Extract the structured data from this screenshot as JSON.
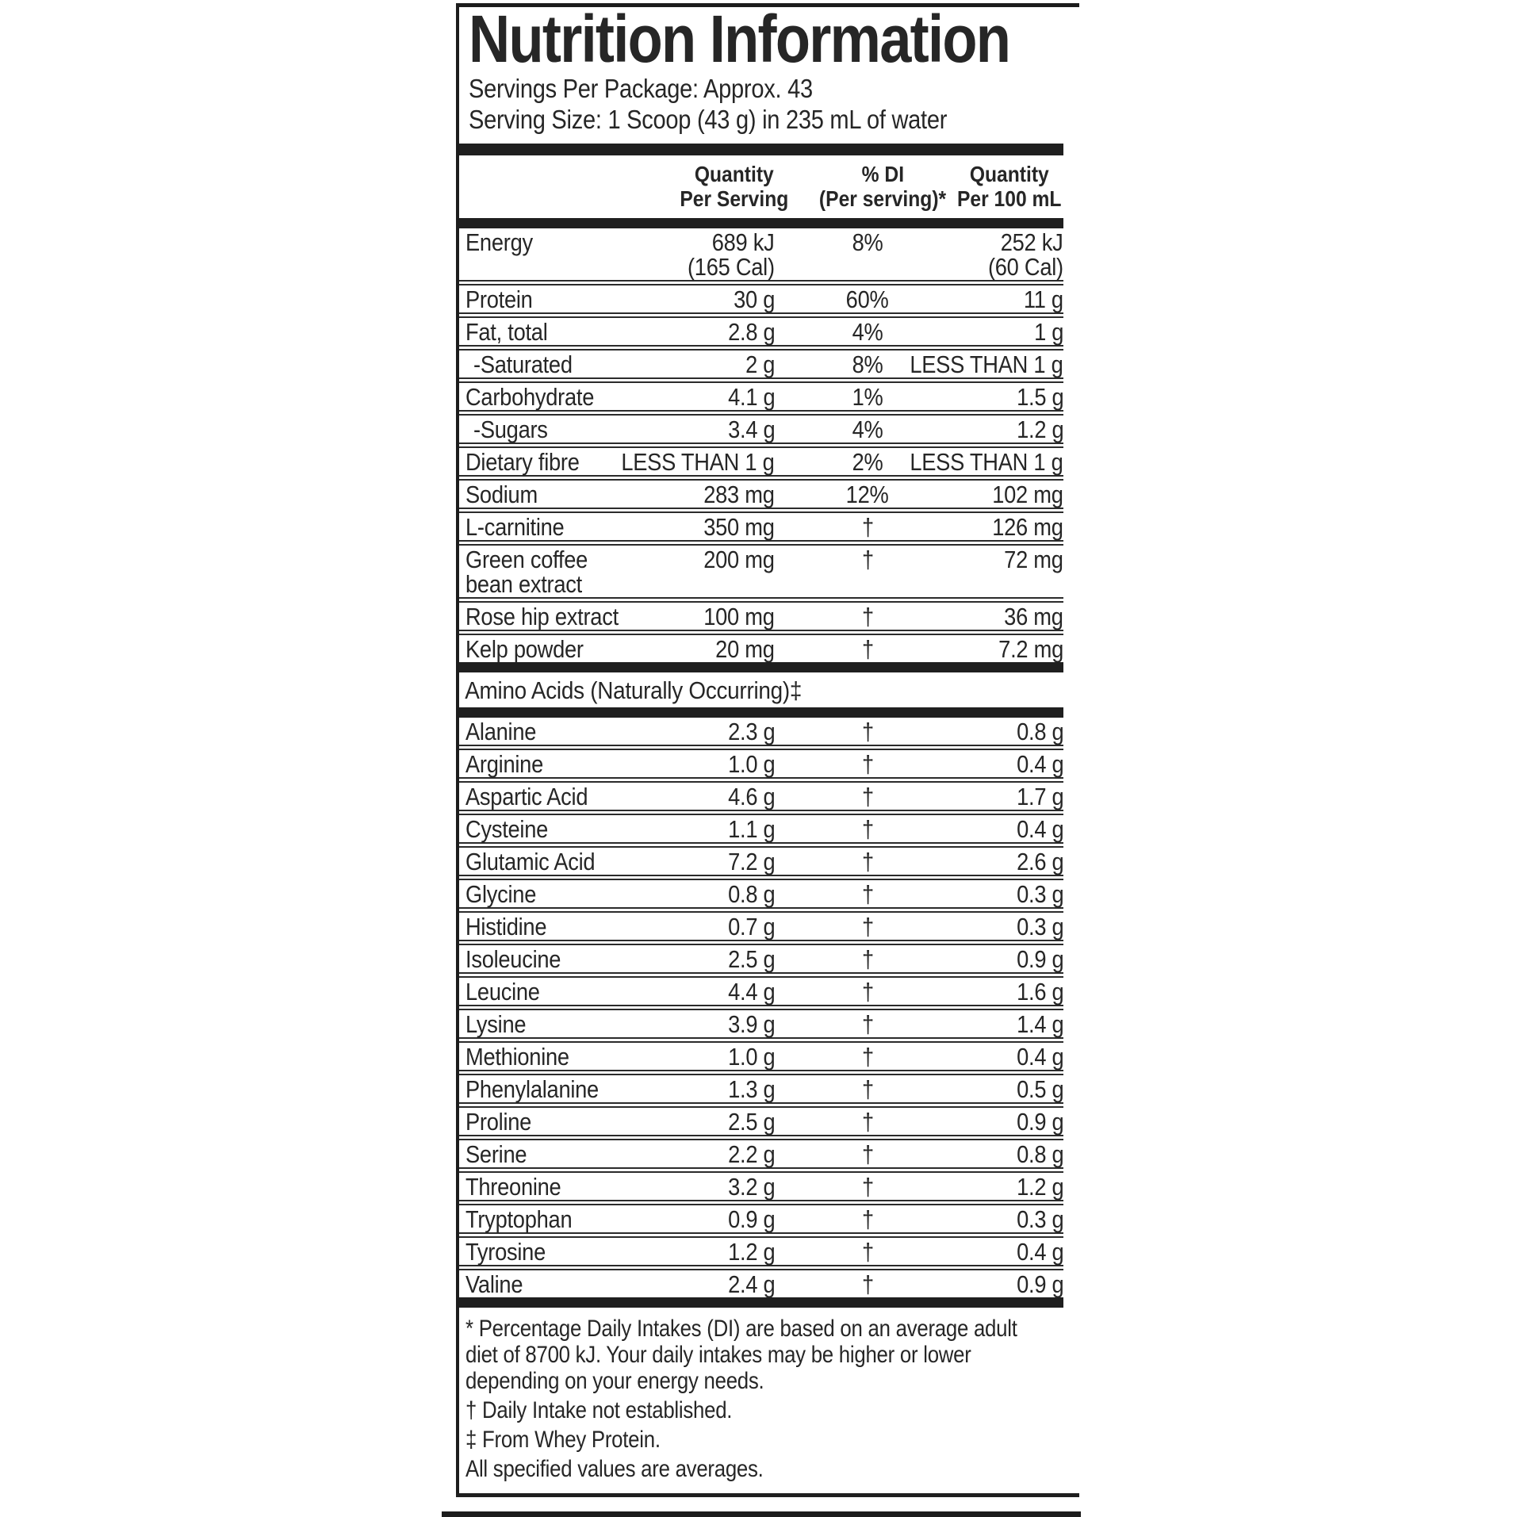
{
  "panel": {
    "title": "Nutrition Information",
    "servings_per_package": "Servings Per Package: Approx. 43",
    "serving_size": "Serving Size: 1 Scoop (43 g) in 235 mL of water",
    "columns": {
      "qty": [
        "Quantity",
        "Per Serving"
      ],
      "di": [
        "% DI",
        "(Per serving)*"
      ],
      "p100": [
        "Quantity",
        "Per 100 mL"
      ]
    },
    "rows": [
      {
        "name": [
          "Energy"
        ],
        "qty": [
          "689 kJ",
          "(165 Cal)"
        ],
        "di": "8%",
        "p100": [
          "252 kJ",
          "(60 Cal)"
        ]
      },
      {
        "name": [
          "Protein"
        ],
        "qty": [
          "30 g"
        ],
        "di": "60%",
        "p100": [
          "11 g"
        ]
      },
      {
        "name": [
          "Fat, total"
        ],
        "qty": [
          "2.8 g"
        ],
        "di": "4%",
        "p100": [
          "1 g"
        ]
      },
      {
        "name": [
          "-Saturated"
        ],
        "indent": true,
        "qty": [
          "2 g"
        ],
        "di": "8%",
        "p100": [
          "LESS THAN 1 g"
        ]
      },
      {
        "name": [
          "Carbohydrate"
        ],
        "qty": [
          "4.1 g"
        ],
        "di": "1%",
        "p100": [
          "1.5 g"
        ]
      },
      {
        "name": [
          "-Sugars"
        ],
        "indent": true,
        "qty": [
          "3.4 g"
        ],
        "di": "4%",
        "p100": [
          "1.2 g"
        ]
      },
      {
        "name": [
          "Dietary fibre"
        ],
        "qty": [
          "LESS THAN 1 g"
        ],
        "di": "2%",
        "p100": [
          "LESS THAN 1 g"
        ]
      },
      {
        "name": [
          "Sodium"
        ],
        "qty": [
          "283 mg"
        ],
        "di": "12%",
        "p100": [
          "102 mg"
        ]
      },
      {
        "name": [
          "L-carnitine"
        ],
        "qty": [
          "350 mg"
        ],
        "di": "†",
        "p100": [
          "126 mg"
        ]
      },
      {
        "name": [
          "Green coffee",
          "bean extract"
        ],
        "qty": [
          "200 mg"
        ],
        "di": "†",
        "p100": [
          "72 mg"
        ]
      },
      {
        "name": [
          "Rose hip extract"
        ],
        "qty": [
          "100 mg"
        ],
        "di": "†",
        "p100": [
          "36 mg"
        ]
      },
      {
        "name": [
          "Kelp powder"
        ],
        "qty": [
          "20 mg"
        ],
        "di": "†",
        "p100": [
          "7.2 mg"
        ]
      }
    ],
    "amino_header": "Amino Acids (Naturally Occurring)‡",
    "amino_rows": [
      {
        "name": [
          "Alanine"
        ],
        "qty": [
          "2.3 g"
        ],
        "di": "†",
        "p100": [
          "0.8 g"
        ]
      },
      {
        "name": [
          "Arginine"
        ],
        "qty": [
          "1.0 g"
        ],
        "di": "†",
        "p100": [
          "0.4 g"
        ]
      },
      {
        "name": [
          "Aspartic Acid"
        ],
        "qty": [
          "4.6 g"
        ],
        "di": "†",
        "p100": [
          "1.7 g"
        ]
      },
      {
        "name": [
          "Cysteine"
        ],
        "qty": [
          "1.1 g"
        ],
        "di": "†",
        "p100": [
          "0.4 g"
        ]
      },
      {
        "name": [
          "Glutamic Acid"
        ],
        "qty": [
          "7.2 g"
        ],
        "di": "†",
        "p100": [
          "2.6 g"
        ]
      },
      {
        "name": [
          "Glycine"
        ],
        "qty": [
          "0.8 g"
        ],
        "di": "†",
        "p100": [
          "0.3 g"
        ]
      },
      {
        "name": [
          "Histidine"
        ],
        "qty": [
          "0.7 g"
        ],
        "di": "†",
        "p100": [
          "0.3 g"
        ]
      },
      {
        "name": [
          "Isoleucine"
        ],
        "qty": [
          "2.5 g"
        ],
        "di": "†",
        "p100": [
          "0.9 g"
        ]
      },
      {
        "name": [
          "Leucine"
        ],
        "qty": [
          "4.4 g"
        ],
        "di": "†",
        "p100": [
          "1.6 g"
        ]
      },
      {
        "name": [
          "Lysine"
        ],
        "qty": [
          "3.9 g"
        ],
        "di": "†",
        "p100": [
          "1.4 g"
        ]
      },
      {
        "name": [
          "Methionine"
        ],
        "qty": [
          "1.0 g"
        ],
        "di": "†",
        "p100": [
          "0.4 g"
        ]
      },
      {
        "name": [
          "Phenylalanine"
        ],
        "qty": [
          "1.3 g"
        ],
        "di": "†",
        "p100": [
          "0.5 g"
        ]
      },
      {
        "name": [
          "Proline"
        ],
        "qty": [
          "2.5 g"
        ],
        "di": "†",
        "p100": [
          "0.9 g"
        ]
      },
      {
        "name": [
          "Serine"
        ],
        "qty": [
          "2.2 g"
        ],
        "di": "†",
        "p100": [
          "0.8 g"
        ]
      },
      {
        "name": [
          "Threonine"
        ],
        "qty": [
          "3.2 g"
        ],
        "di": "†",
        "p100": [
          "1.2 g"
        ]
      },
      {
        "name": [
          "Tryptophan"
        ],
        "qty": [
          "0.9 g"
        ],
        "di": "†",
        "p100": [
          "0.3 g"
        ]
      },
      {
        "name": [
          "Tyrosine"
        ],
        "qty": [
          "1.2 g"
        ],
        "di": "†",
        "p100": [
          "0.4 g"
        ]
      },
      {
        "name": [
          "Valine"
        ],
        "qty": [
          "2.4 g"
        ],
        "di": "†",
        "p100": [
          "0.9 g"
        ]
      }
    ],
    "footnotes": [
      {
        "lines": [
          "* Percentage Daily Intakes (DI) are based on an average adult",
          "diet of 8700 kJ. Your daily intakes may be higher or lower",
          "depending on your energy needs."
        ]
      },
      {
        "lines": [
          "† Daily Intake not established."
        ]
      },
      {
        "lines": [
          "‡ From Whey Protein."
        ]
      },
      {
        "lines": [
          "All specified values are averages."
        ]
      }
    ],
    "colors": {
      "ink": "#262626",
      "bar": "#1f1f1f",
      "background": "#ffffff"
    }
  }
}
